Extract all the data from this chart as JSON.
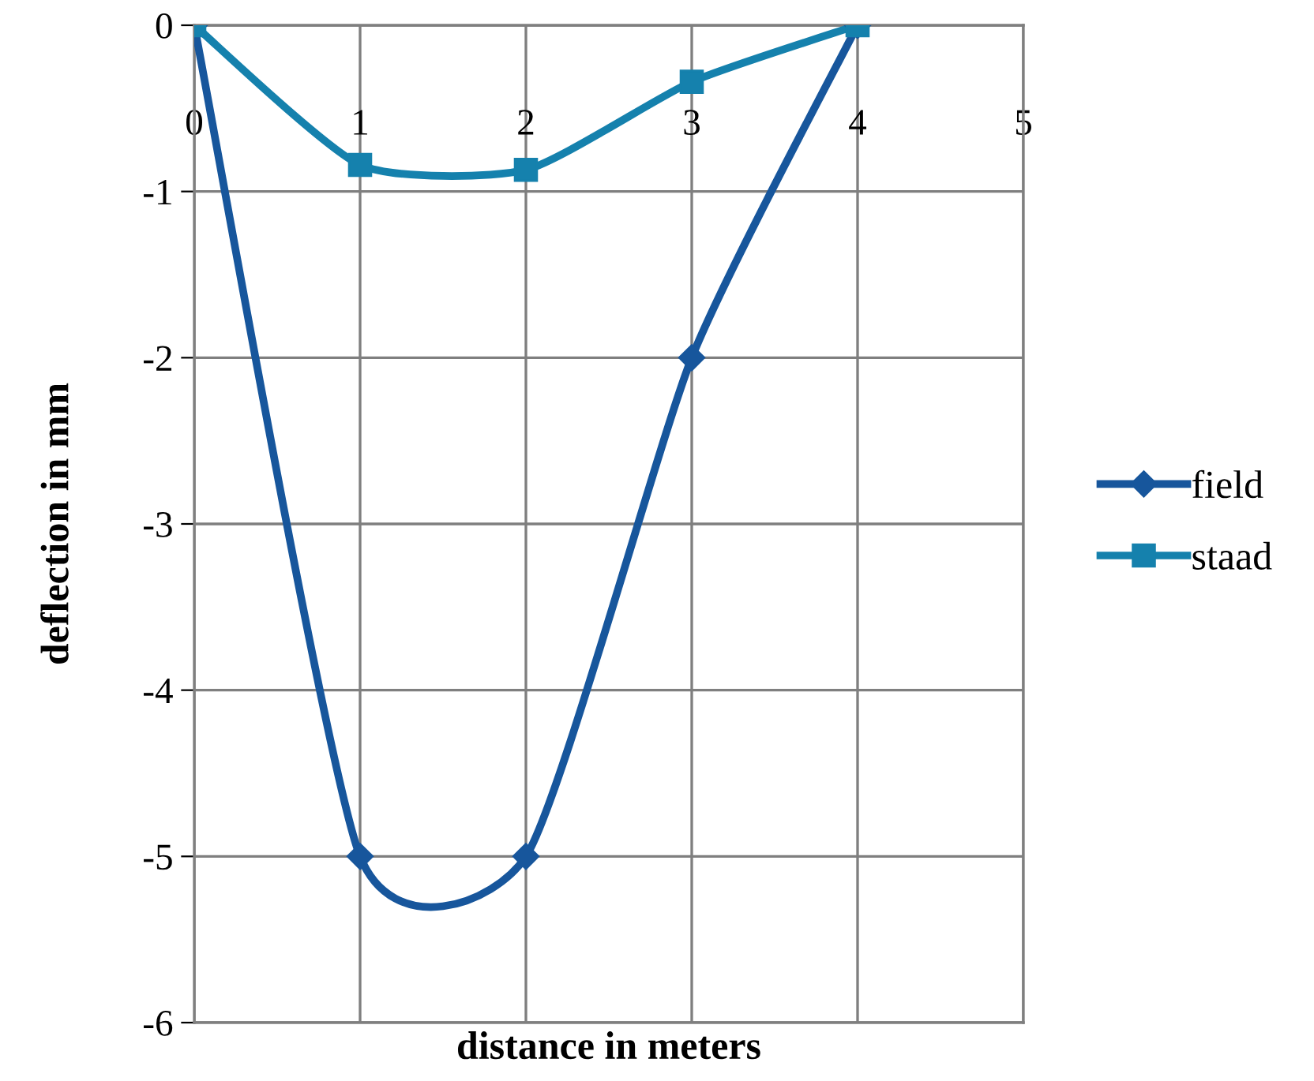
{
  "chart_data": {
    "type": "line",
    "xlabel": "distance in meters",
    "ylabel": "deflection in mm",
    "x": [
      0,
      1,
      2,
      3,
      4
    ],
    "series": [
      {
        "name": "field",
        "color": "#17569c",
        "marker": "diamond",
        "values": [
          0,
          -5,
          -5,
          -2,
          0
        ]
      },
      {
        "name": "staad",
        "color": "#1581ad",
        "marker": "square",
        "values": [
          0,
          -0.84,
          -0.87,
          -0.34,
          0
        ]
      }
    ],
    "xlim": [
      0,
      5
    ],
    "xticks": [
      0,
      1,
      2,
      3,
      4,
      5
    ],
    "ylim": [
      -6,
      0
    ],
    "yticks": [
      -6,
      -5,
      -4,
      -3,
      -2,
      -1,
      0
    ],
    "grid": true,
    "legend": "right",
    "line_style": "solid"
  }
}
